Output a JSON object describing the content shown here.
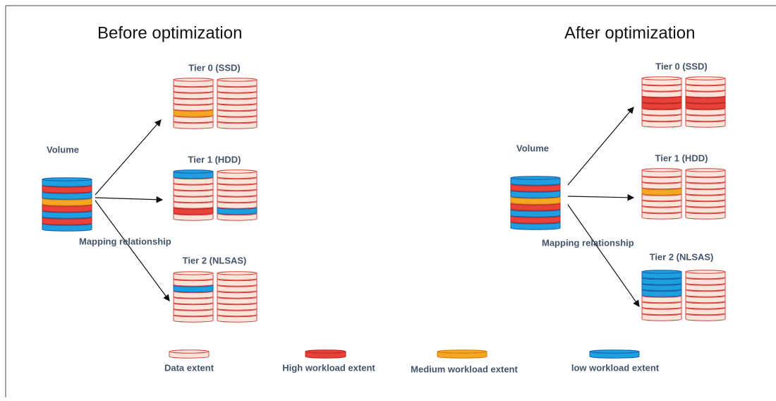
{
  "before": {
    "title": "Before optimization",
    "volume": "Volume",
    "mapping": "Mapping relationship",
    "tiers": [
      "Tier 0 (SSD)",
      "Tier 1 (HDD)",
      "Tier 2 (NLSAS)"
    ]
  },
  "after": {
    "title": "After optimization",
    "volume": "Volume",
    "mapping": "Mapping relationship",
    "tiers": [
      "Tier 0 (SSD)",
      "Tier 1 (HDD)",
      "Tier 2 (NLSAS)"
    ]
  },
  "legend": [
    "Data extent",
    "High workload extent",
    "Medium workload extent",
    "low workload extent"
  ]
}
